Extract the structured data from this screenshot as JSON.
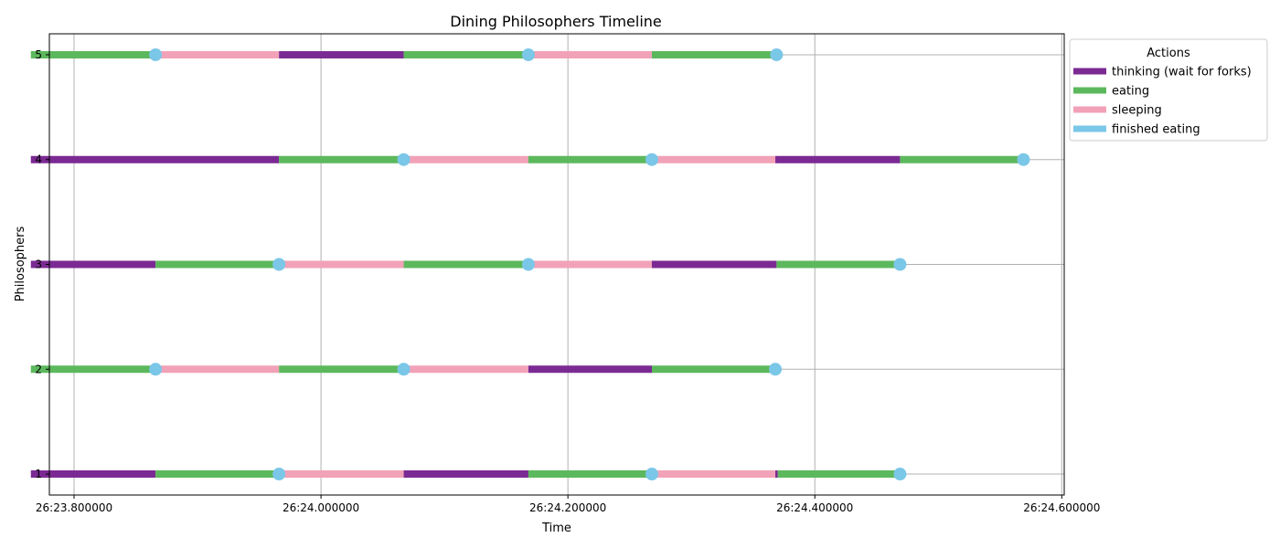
{
  "chart_data": {
    "type": "timeline",
    "title": "Dining Philosophers Timeline",
    "xlabel": "Time",
    "ylabel": "Philosophers",
    "xlim": [
      23.78,
      24.602
    ],
    "ylim": [
      0.8,
      5.2
    ],
    "grid": true,
    "x_ticks": [
      {
        "value": 23.8,
        "label": "26:23.800000"
      },
      {
        "value": 24.0,
        "label": "26:24.000000"
      },
      {
        "value": 24.2,
        "label": "26:24.200000"
      },
      {
        "value": 24.4,
        "label": "26:24.400000"
      },
      {
        "value": 24.6,
        "label": "26:24.600000"
      }
    ],
    "y_ticks": [
      {
        "value": 1,
        "label": "1"
      },
      {
        "value": 2,
        "label": "2"
      },
      {
        "value": 3,
        "label": "3"
      },
      {
        "value": 4,
        "label": "4"
      },
      {
        "value": 5,
        "label": "5"
      }
    ],
    "legend": {
      "title": "Actions",
      "placement": "outside-top-right",
      "entries": [
        {
          "key": "thinking",
          "label": "thinking (wait for forks)",
          "color": "#7b2a93"
        },
        {
          "key": "eating",
          "label": "eating",
          "color": "#5cb85c"
        },
        {
          "key": "sleeping",
          "label": "sleeping",
          "color": "#f2a2b8"
        },
        {
          "key": "finished",
          "label": "finished eating",
          "color": "#7ac7e8"
        }
      ]
    },
    "philosophers": [
      {
        "id": 1,
        "segments": [
          {
            "action": "thinking",
            "start": 23.765,
            "end": 23.866
          },
          {
            "action": "eating",
            "start": 23.866,
            "end": 23.966
          },
          {
            "action": "sleeping",
            "start": 23.966,
            "end": 24.067
          },
          {
            "action": "thinking",
            "start": 24.067,
            "end": 24.168
          },
          {
            "action": "eating",
            "start": 24.168,
            "end": 24.268
          },
          {
            "action": "sleeping",
            "start": 24.268,
            "end": 24.368
          },
          {
            "action": "thinking",
            "start": 24.368,
            "end": 24.37
          },
          {
            "action": "eating",
            "start": 24.37,
            "end": 24.469
          }
        ],
        "finished": [
          23.966,
          24.268,
          24.469
        ]
      },
      {
        "id": 2,
        "segments": [
          {
            "action": "eating",
            "start": 23.765,
            "end": 23.866
          },
          {
            "action": "sleeping",
            "start": 23.866,
            "end": 23.966
          },
          {
            "action": "eating",
            "start": 23.966,
            "end": 24.067
          },
          {
            "action": "sleeping",
            "start": 24.067,
            "end": 24.168
          },
          {
            "action": "thinking",
            "start": 24.168,
            "end": 24.268
          },
          {
            "action": "eating",
            "start": 24.268,
            "end": 24.368
          }
        ],
        "finished": [
          23.866,
          24.067,
          24.368
        ]
      },
      {
        "id": 3,
        "segments": [
          {
            "action": "thinking",
            "start": 23.765,
            "end": 23.866
          },
          {
            "action": "eating",
            "start": 23.866,
            "end": 23.966
          },
          {
            "action": "sleeping",
            "start": 23.966,
            "end": 24.067
          },
          {
            "action": "eating",
            "start": 24.067,
            "end": 24.168
          },
          {
            "action": "sleeping",
            "start": 24.168,
            "end": 24.268
          },
          {
            "action": "thinking",
            "start": 24.268,
            "end": 24.369
          },
          {
            "action": "eating",
            "start": 24.369,
            "end": 24.469
          }
        ],
        "finished": [
          23.966,
          24.168,
          24.469
        ]
      },
      {
        "id": 4,
        "segments": [
          {
            "action": "thinking",
            "start": 23.765,
            "end": 23.966
          },
          {
            "action": "eating",
            "start": 23.966,
            "end": 24.067
          },
          {
            "action": "sleeping",
            "start": 24.067,
            "end": 24.168
          },
          {
            "action": "eating",
            "start": 24.168,
            "end": 24.268
          },
          {
            "action": "sleeping",
            "start": 24.268,
            "end": 24.368
          },
          {
            "action": "thinking",
            "start": 24.368,
            "end": 24.469
          },
          {
            "action": "eating",
            "start": 24.469,
            "end": 24.569
          }
        ],
        "finished": [
          24.067,
          24.268,
          24.569
        ]
      },
      {
        "id": 5,
        "segments": [
          {
            "action": "eating",
            "start": 23.765,
            "end": 23.866
          },
          {
            "action": "sleeping",
            "start": 23.866,
            "end": 23.966
          },
          {
            "action": "thinking",
            "start": 23.966,
            "end": 24.067
          },
          {
            "action": "eating",
            "start": 24.067,
            "end": 24.168
          },
          {
            "action": "sleeping",
            "start": 24.168,
            "end": 24.268
          },
          {
            "action": "eating",
            "start": 24.268,
            "end": 24.369
          }
        ],
        "finished": [
          23.866,
          24.168,
          24.369
        ]
      }
    ]
  }
}
